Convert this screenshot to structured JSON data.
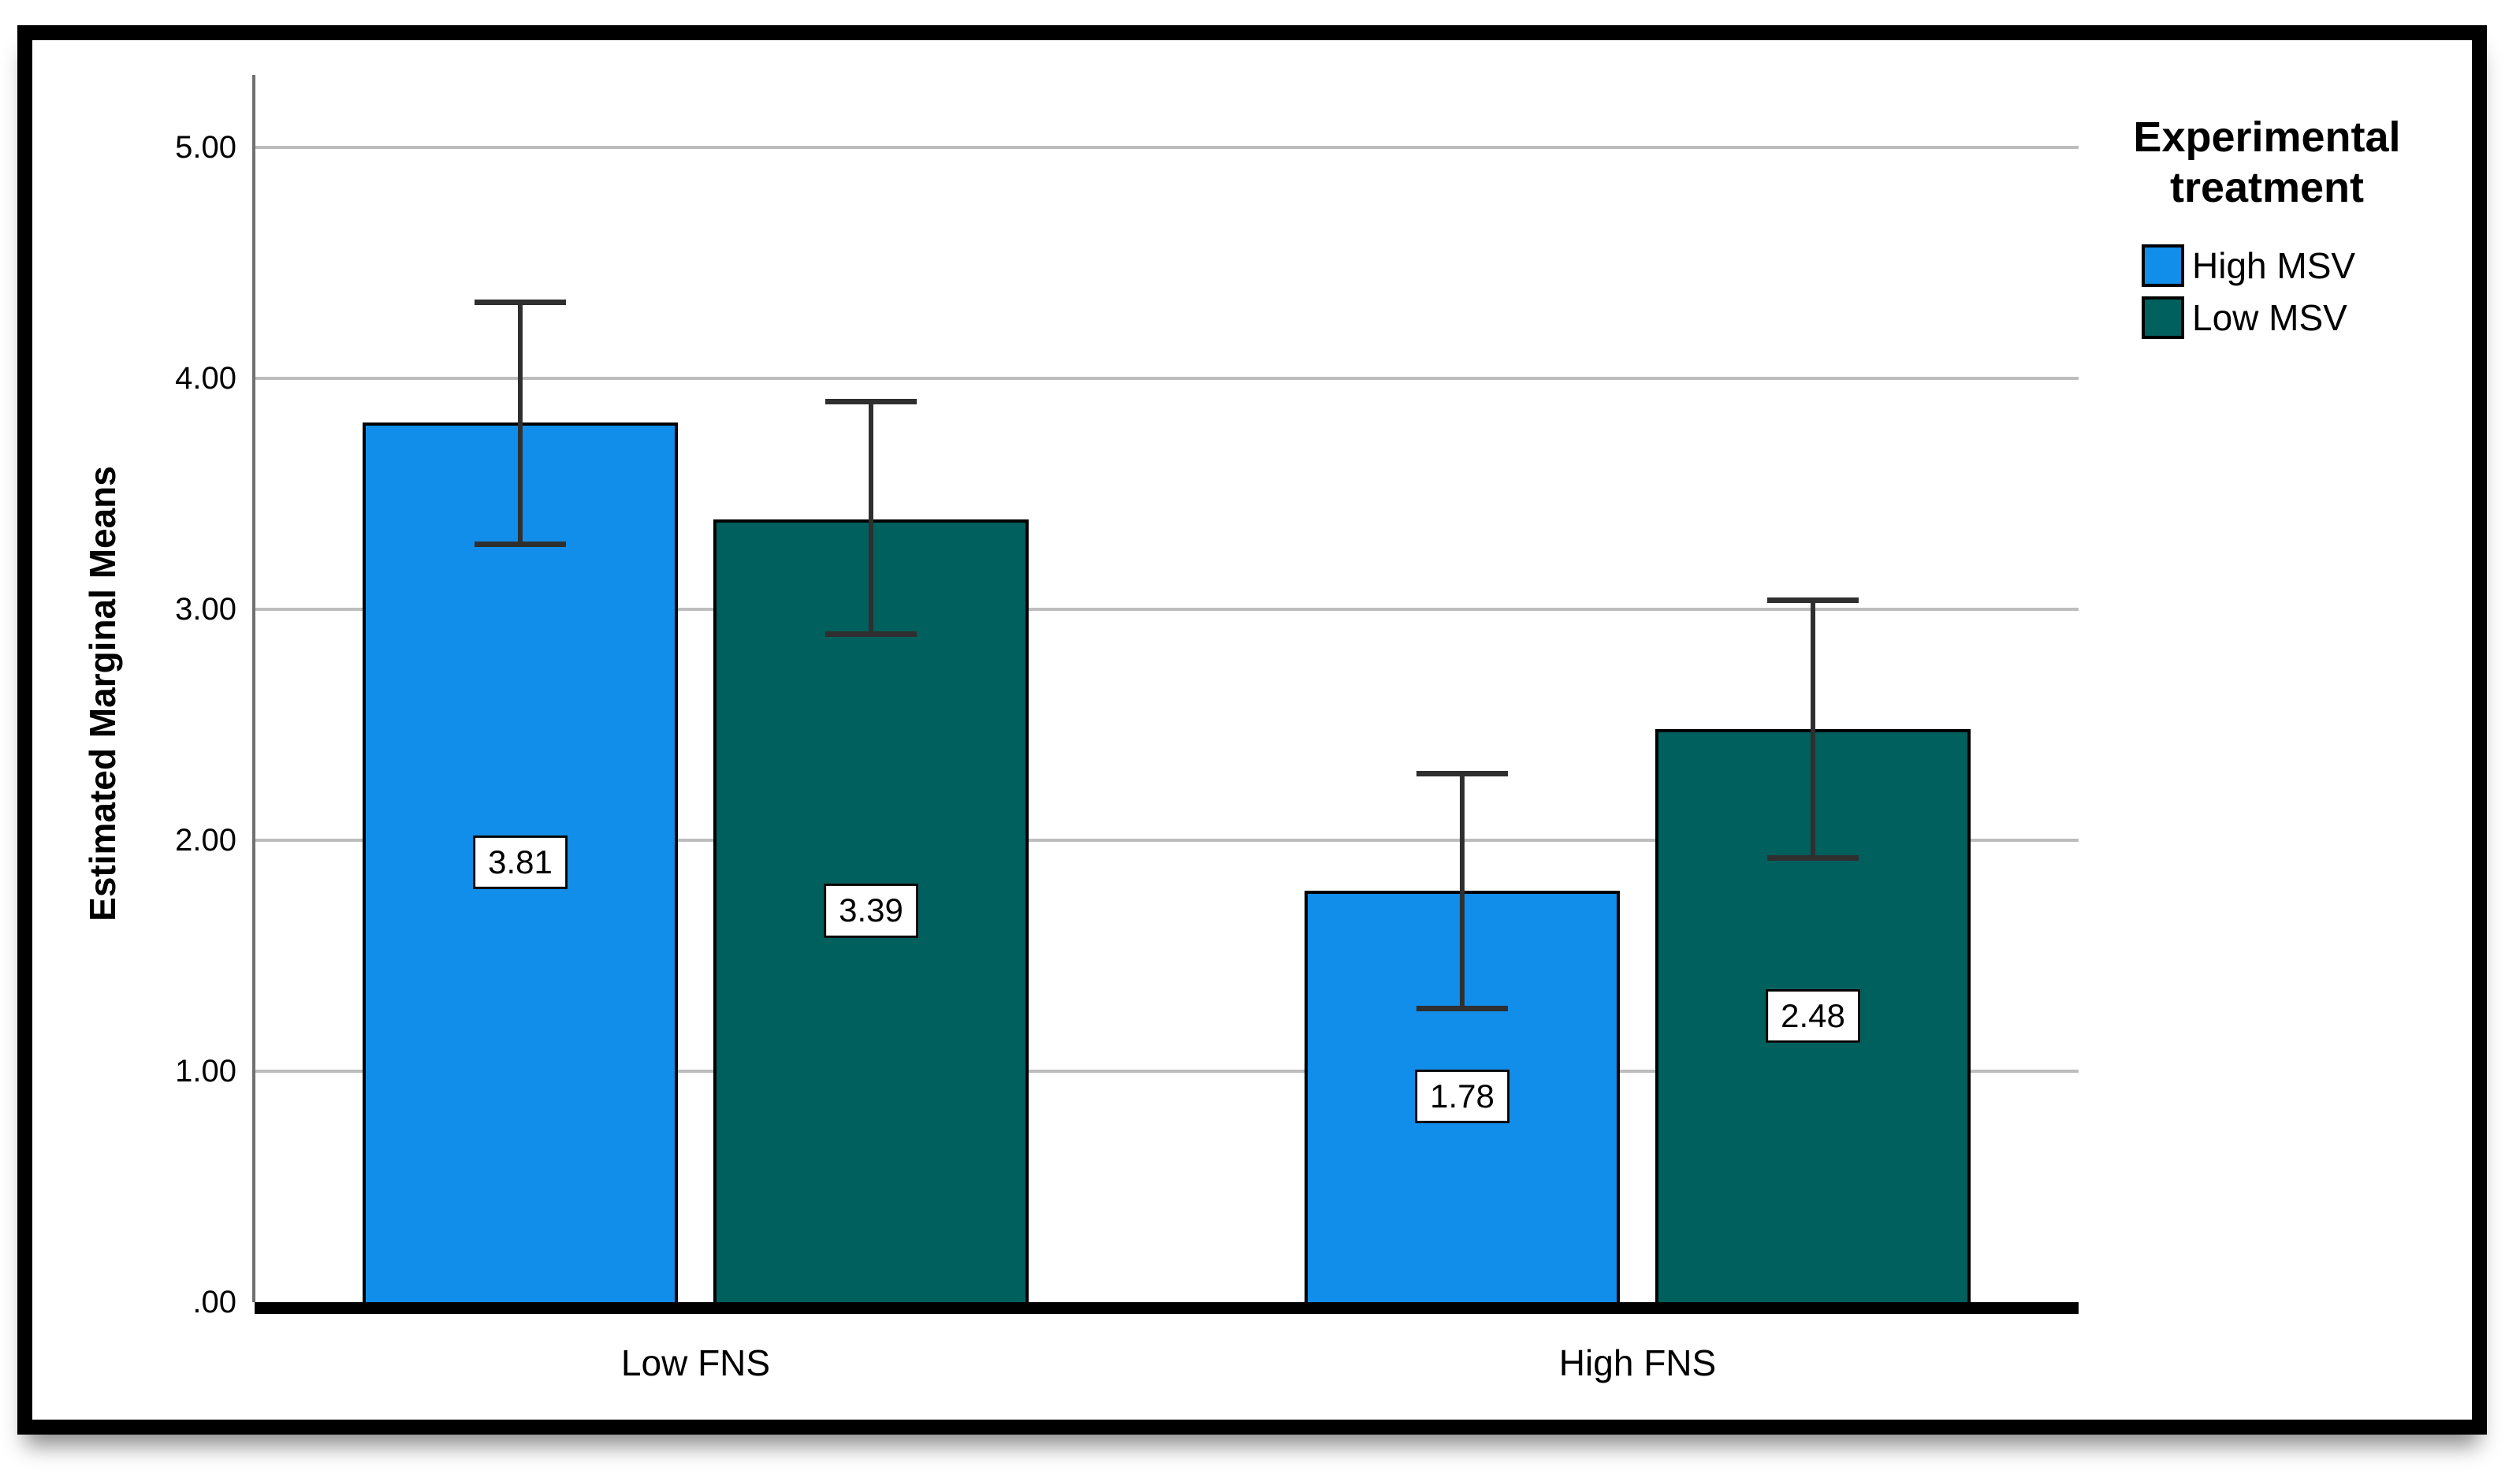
{
  "chart_data": {
    "type": "bar",
    "title": "",
    "categories": [
      "Low FNS",
      "High FNS"
    ],
    "series": [
      {
        "name": "High MSV",
        "color": "#118EE9",
        "values": [
          3.81,
          1.78
        ],
        "value_labels": [
          "3.81",
          "1.78"
        ],
        "ci_lower": [
          3.28,
          1.27
        ],
        "ci_upper": [
          4.33,
          2.29
        ]
      },
      {
        "name": "Low MSV",
        "color": "#00605E",
        "values": [
          3.39,
          2.48
        ],
        "value_labels": [
          "3.39",
          "2.48"
        ],
        "ci_lower": [
          2.89,
          1.92
        ],
        "ci_upper": [
          3.9,
          3.04
        ]
      }
    ],
    "xlabel": "",
    "ylabel": "Estimated Marginal Means",
    "ylim": [
      0,
      5.31
    ],
    "yticks": [
      {
        "value": 5,
        "label": "5.00"
      },
      {
        "value": 4,
        "label": "4.00"
      },
      {
        "value": 3,
        "label": "3.00"
      },
      {
        "value": 2,
        "label": "2.00"
      },
      {
        "value": 1,
        "label": "1.00"
      },
      {
        "value": 0,
        "label": ".00"
      }
    ],
    "grid": "horizontal",
    "error_bars": "capped whiskers on every bar",
    "legend_position": "top-right"
  },
  "legend": {
    "title_lines": [
      "Experimental",
      "treatment"
    ]
  },
  "colors": {
    "high_msv": "#118EE9",
    "low_msv": "#00605E",
    "gridline": "#BDBDBD",
    "axis_line": "#707070",
    "baseline": "#000000",
    "error_bar": "#2F2F2F",
    "frame_border": "#000000",
    "background": "#FFFFFF"
  }
}
